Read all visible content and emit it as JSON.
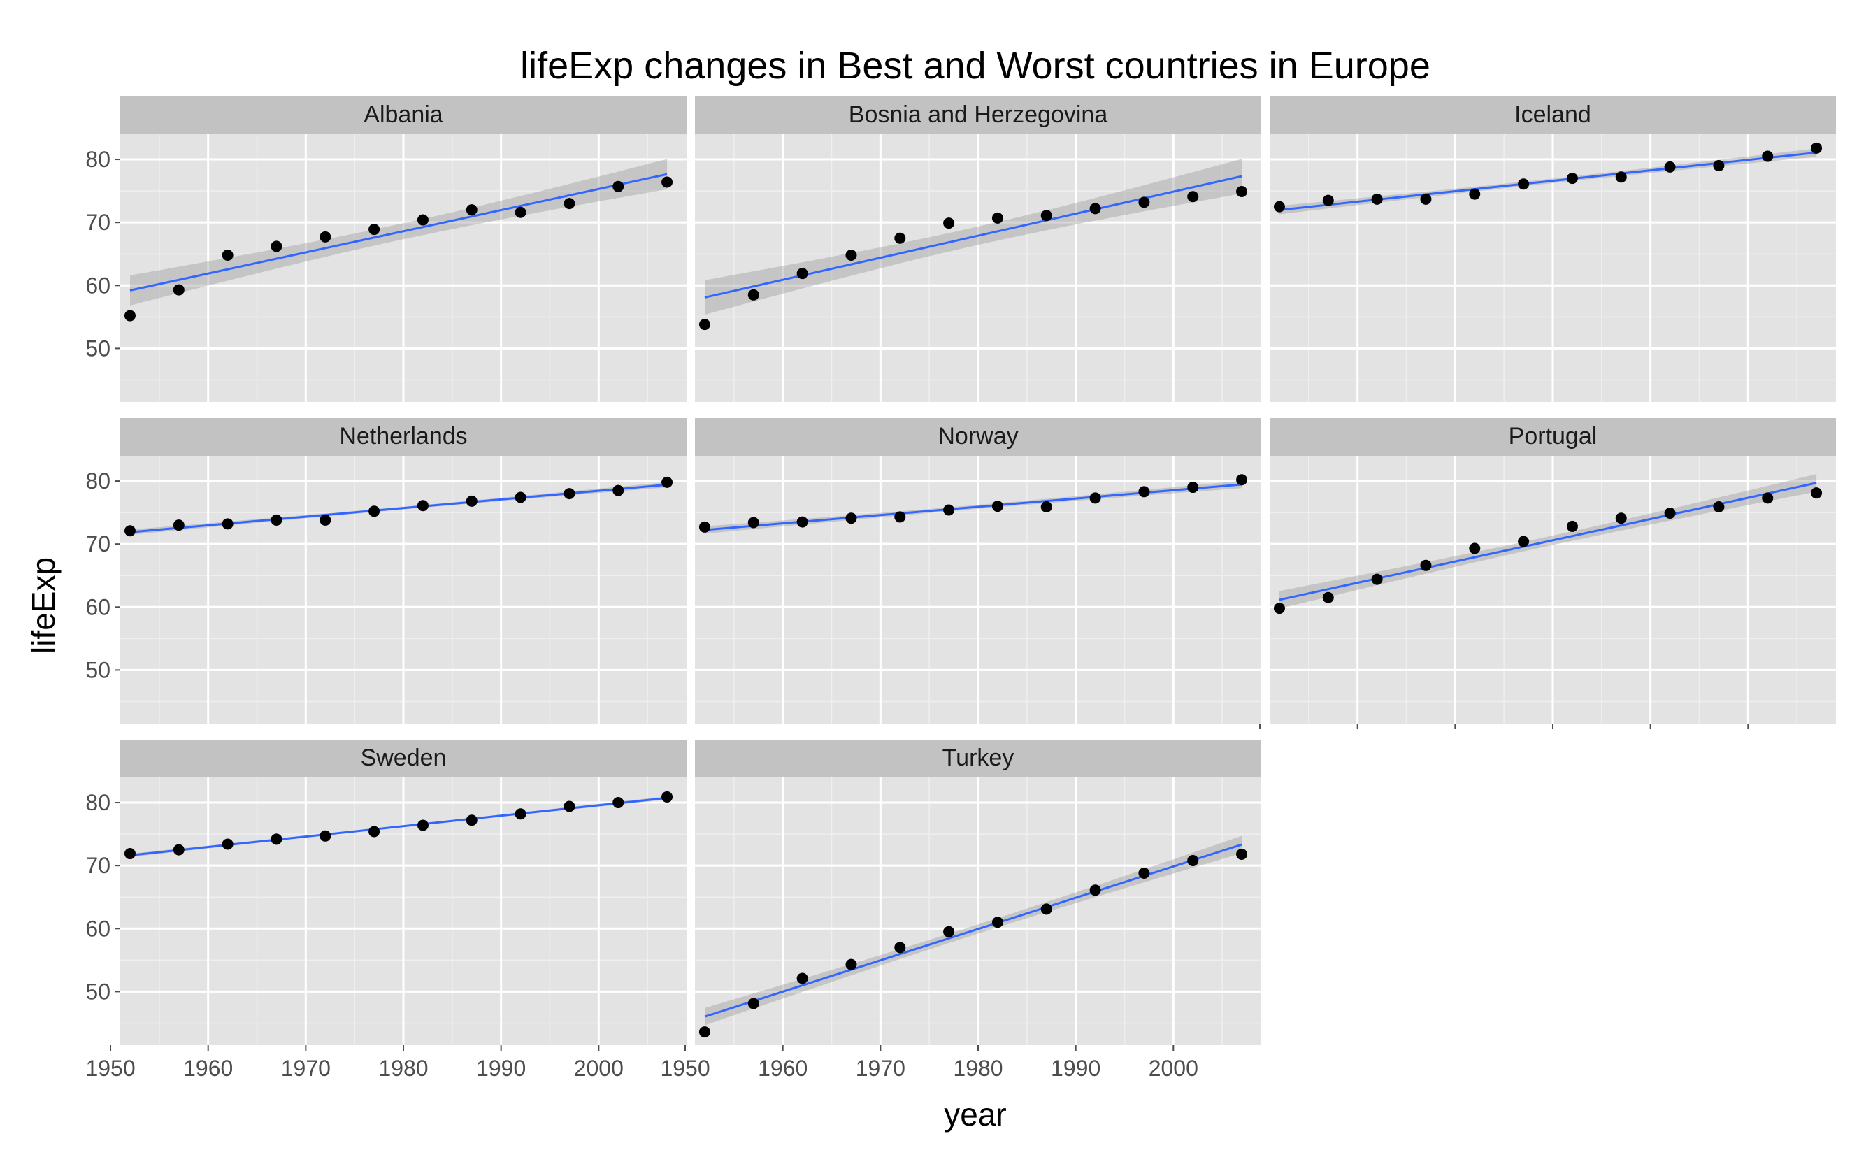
{
  "chart_data": {
    "type": "scatter",
    "title": "lifeExp changes in Best and Worst countries in Europe",
    "xlabel": "year",
    "ylabel": "lifeExp",
    "xlim": [
      1951,
      2009
    ],
    "ylim": [
      41.5,
      84
    ],
    "x_ticks": [
      1950,
      1960,
      1970,
      1980,
      1990,
      2000
    ],
    "y_ticks": [
      50,
      60,
      70,
      80
    ],
    "grid": true,
    "legend": "none",
    "facet_layout": "3 columns x 3 rows",
    "colors": {
      "points": "#000000",
      "smooth_line": "#3366ff",
      "confidence_band": "#999999",
      "panel_background": "#e3e3e3",
      "strip_background": "#c2c2c2",
      "grid_major": "#ffffff"
    },
    "x": [
      1952,
      1957,
      1962,
      1967,
      1972,
      1977,
      1982,
      1987,
      1992,
      1997,
      2002,
      2007
    ],
    "series": [
      {
        "name": "Albania",
        "values": [
          55.2,
          59.3,
          64.8,
          66.2,
          67.7,
          68.9,
          70.4,
          72.0,
          71.6,
          73.0,
          75.7,
          76.4
        ]
      },
      {
        "name": "Bosnia and Herzegovina",
        "values": [
          53.8,
          58.5,
          61.9,
          64.8,
          67.5,
          69.9,
          70.7,
          71.1,
          72.2,
          73.2,
          74.1,
          74.9
        ]
      },
      {
        "name": "Iceland",
        "values": [
          72.5,
          73.5,
          73.7,
          73.7,
          74.5,
          76.1,
          77.0,
          77.2,
          78.8,
          79.0,
          80.5,
          81.8
        ]
      },
      {
        "name": "Netherlands",
        "values": [
          72.1,
          73.0,
          73.2,
          73.8,
          73.8,
          75.2,
          76.1,
          76.8,
          77.4,
          78.0,
          78.5,
          79.8
        ]
      },
      {
        "name": "Norway",
        "values": [
          72.7,
          73.4,
          73.5,
          74.1,
          74.3,
          75.4,
          76.0,
          75.9,
          77.3,
          78.3,
          79.0,
          80.2
        ]
      },
      {
        "name": "Portugal",
        "values": [
          59.8,
          61.5,
          64.4,
          66.6,
          69.3,
          70.4,
          72.8,
          74.1,
          74.9,
          75.9,
          77.3,
          78.1
        ]
      },
      {
        "name": "Sweden",
        "values": [
          71.9,
          72.5,
          73.4,
          74.2,
          74.7,
          75.4,
          76.4,
          77.2,
          78.2,
          79.4,
          80.0,
          80.9
        ]
      },
      {
        "name": "Turkey",
        "values": [
          43.6,
          48.1,
          52.1,
          54.3,
          57.0,
          59.5,
          61.0,
          63.1,
          66.1,
          68.8,
          70.8,
          71.8
        ]
      }
    ]
  }
}
